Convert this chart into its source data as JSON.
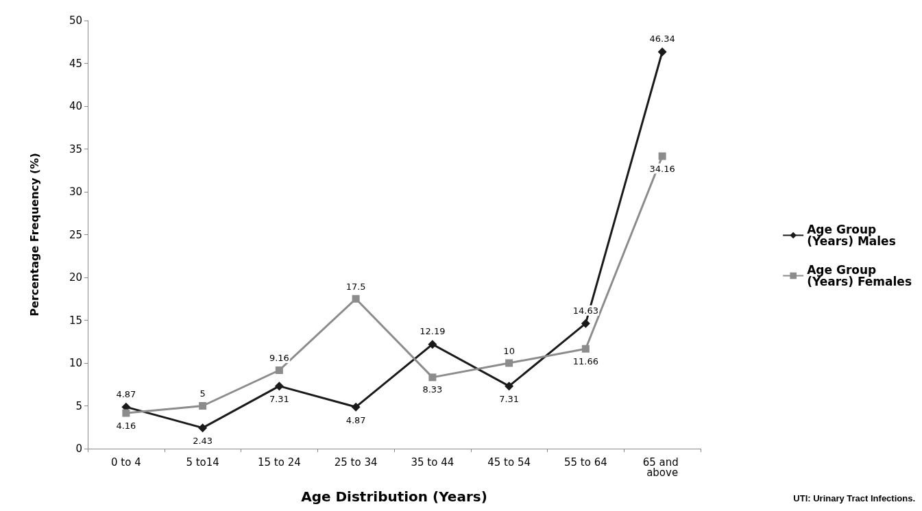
{
  "chart_data": {
    "type": "line",
    "xlabel": "Age Distribution (Years)",
    "ylabel": "Percentage Frequency (%)",
    "categories": [
      "0 to 4",
      "5 to14",
      "15 to 24",
      "25 to 34",
      "35 to 44",
      "45 to 54",
      "55 to 64",
      "65 and above"
    ],
    "series": [
      {
        "name": "Age Group (Years) Males",
        "color": "#1a1a1a",
        "marker": "diamond",
        "values": [
          4.87,
          2.43,
          7.31,
          4.87,
          12.19,
          7.31,
          14.63,
          46.34
        ]
      },
      {
        "name": "Age Group (Years) Females",
        "color": "#8c8c8c",
        "marker": "square",
        "values": [
          4.16,
          5,
          9.16,
          17.5,
          8.33,
          10,
          11.66,
          34.16
        ]
      }
    ],
    "ylim": [
      0,
      50
    ],
    "yticks": [
      0,
      5,
      10,
      15,
      20,
      25,
      30,
      35,
      40,
      45,
      50
    ],
    "grid": false,
    "legend": "right",
    "data_labels": true,
    "annotations": [
      "UTI: Urinary Tract Infections."
    ]
  }
}
